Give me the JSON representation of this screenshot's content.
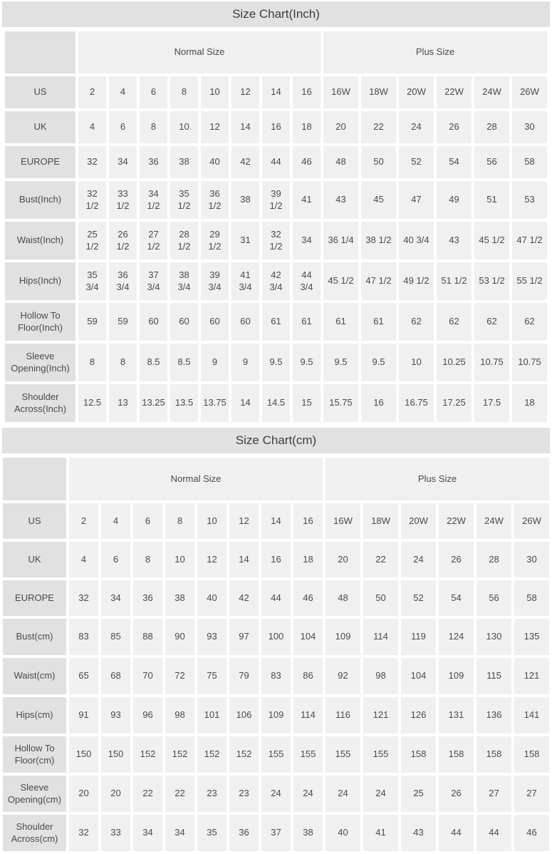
{
  "colors": {
    "title_bg": "#e1e1e1",
    "row_header_bg": "#e1e1e1",
    "data_cell_bg": "#f0f0f0",
    "gap_bg": "#ffffff",
    "text": "#4a4a4a"
  },
  "chart_data": [
    {
      "type": "table",
      "title": "Size Chart(Inch)",
      "groups": [
        {
          "label": "",
          "span": 1
        },
        {
          "label": "Normal Size",
          "span": 8
        },
        {
          "label": "Plus Size",
          "span": 6
        }
      ],
      "rows": [
        {
          "label": "US",
          "values": [
            "2",
            "4",
            "6",
            "8",
            "10",
            "12",
            "14",
            "16",
            "16W",
            "18W",
            "20W",
            "22W",
            "24W",
            "26W"
          ]
        },
        {
          "label": "UK",
          "values": [
            "4",
            "6",
            "8",
            "10",
            "12",
            "14",
            "16",
            "18",
            "20",
            "22",
            "24",
            "26",
            "28",
            "30"
          ]
        },
        {
          "label": "EUROPE",
          "values": [
            "32",
            "34",
            "36",
            "38",
            "40",
            "42",
            "44",
            "46",
            "48",
            "50",
            "52",
            "54",
            "56",
            "58"
          ]
        },
        {
          "label": "Bust(Inch)",
          "values": [
            "32 1/2",
            "33 1/2",
            "34 1/2",
            "35 1/2",
            "36 1/2",
            "38",
            "39 1/2",
            "41",
            "43",
            "45",
            "47",
            "49",
            "51",
            "53"
          ]
        },
        {
          "label": "Waist(Inch)",
          "values": [
            "25 1/2",
            "26 1/2",
            "27 1/2",
            "28 1/2",
            "29 1/2",
            "31",
            "32 1/2",
            "34",
            "36 1/4",
            "38 1/2",
            "40 3/4",
            "43",
            "45 1/2",
            "47 1/2"
          ]
        },
        {
          "label": "Hips(Inch)",
          "values": [
            "35 3/4",
            "36 3/4",
            "37 3/4",
            "38 3/4",
            "39 3/4",
            "41 3/4",
            "42 3/4",
            "44 3/4",
            "45 1/2",
            "47 1/2",
            "49 1/2",
            "51 1/2",
            "53 1/2",
            "55 1/2"
          ]
        },
        {
          "label": "Hollow To Floor(Inch)",
          "values": [
            "59",
            "59",
            "60",
            "60",
            "60",
            "60",
            "61",
            "61",
            "61",
            "61",
            "62",
            "62",
            "62",
            "62"
          ]
        },
        {
          "label": "Sleeve Opening(Inch)",
          "values": [
            "8",
            "8",
            "8.5",
            "8.5",
            "9",
            "9",
            "9.5",
            "9.5",
            "9.5",
            "9.5",
            "10",
            "10.25",
            "10.75",
            "10.75"
          ]
        },
        {
          "label": "Shoulder Across(Inch)",
          "values": [
            "12.5",
            "13",
            "13.25",
            "13.5",
            "13.75",
            "14",
            "14.5",
            "15",
            "15.75",
            "16",
            "16.75",
            "17.25",
            "17.5",
            "18"
          ]
        }
      ]
    },
    {
      "type": "table",
      "title": "Size Chart(cm)",
      "groups": [
        {
          "label": "",
          "span": 1
        },
        {
          "label": "Normal Size",
          "span": 8
        },
        {
          "label": "Plus Size",
          "span": 6
        }
      ],
      "rows": [
        {
          "label": "US",
          "values": [
            "2",
            "4",
            "6",
            "8",
            "10",
            "12",
            "14",
            "16",
            "16W",
            "18W",
            "20W",
            "22W",
            "24W",
            "26W"
          ]
        },
        {
          "label": "UK",
          "values": [
            "4",
            "6",
            "8",
            "10",
            "12",
            "14",
            "16",
            "18",
            "20",
            "22",
            "24",
            "26",
            "28",
            "30"
          ]
        },
        {
          "label": "EUROPE",
          "values": [
            "32",
            "34",
            "36",
            "38",
            "40",
            "42",
            "44",
            "46",
            "48",
            "50",
            "52",
            "54",
            "56",
            "58"
          ]
        },
        {
          "label": "Bust(cm)",
          "values": [
            "83",
            "85",
            "88",
            "90",
            "93",
            "97",
            "100",
            "104",
            "109",
            "114",
            "119",
            "124",
            "130",
            "135"
          ]
        },
        {
          "label": "Waist(cm)",
          "values": [
            "65",
            "68",
            "70",
            "72",
            "75",
            "79",
            "83",
            "86",
            "92",
            "98",
            "104",
            "109",
            "115",
            "121"
          ]
        },
        {
          "label": "Hips(cm)",
          "values": [
            "91",
            "93",
            "96",
            "98",
            "101",
            "106",
            "109",
            "114",
            "116",
            "121",
            "126",
            "131",
            "136",
            "141"
          ]
        },
        {
          "label": "Hollow To Floor(cm)",
          "values": [
            "150",
            "150",
            "152",
            "152",
            "152",
            "152",
            "155",
            "155",
            "155",
            "155",
            "158",
            "158",
            "158",
            "158"
          ]
        },
        {
          "label": "Sleeve Opening(cm)",
          "values": [
            "20",
            "20",
            "22",
            "22",
            "23",
            "23",
            "24",
            "24",
            "24",
            "24",
            "25",
            "26",
            "27",
            "27"
          ]
        },
        {
          "label": "Shoulder Across(cm)",
          "values": [
            "32",
            "33",
            "34",
            "34",
            "35",
            "36",
            "37",
            "38",
            "40",
            "41",
            "43",
            "44",
            "44",
            "46"
          ]
        }
      ]
    }
  ]
}
